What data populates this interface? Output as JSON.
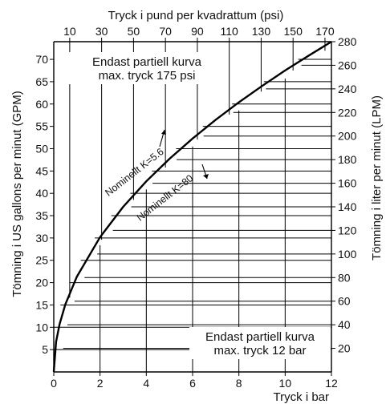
{
  "chart_data": {
    "type": "line",
    "top_axis": {
      "label": "Tryck i pund per kvadrattum (psi)",
      "ticks": [
        10,
        30,
        50,
        70,
        90,
        110,
        130,
        150,
        170
      ],
      "range": [
        0,
        174.05
      ]
    },
    "bottom_axis": {
      "label": "Tryck i bar",
      "ticks": [
        0,
        2,
        4,
        6,
        8,
        10,
        12
      ],
      "range": [
        0,
        12
      ]
    },
    "left_axis": {
      "label": "Tömning i US gallons per minut (GPM)",
      "ticks": [
        5,
        10,
        15,
        20,
        25,
        30,
        35,
        40,
        45,
        50,
        55,
        60,
        65,
        70
      ],
      "range": [
        0,
        73.96
      ]
    },
    "right_axis": {
      "label": "Tömning i liter per minut (LPM)",
      "ticks": [
        20,
        40,
        60,
        80,
        100,
        120,
        140,
        160,
        180,
        200,
        220,
        240,
        260,
        280
      ],
      "range": [
        0,
        280
      ]
    },
    "notes": {
      "top": [
        "Endast partiell kurva",
        "max. tryck 175 psi"
      ],
      "bottom": [
        "Endast partiell kurva",
        "max. tryck 12 bar"
      ]
    },
    "series": [
      {
        "name": "Nominellt K=5.6",
        "arrow": "up",
        "x_bar": [
          0,
          0.1,
          0.25,
          0.5,
          1,
          2,
          3,
          4,
          5,
          6,
          7,
          8,
          9,
          10,
          11,
          12
        ],
        "y_lpm": [
          0,
          25.6,
          40.4,
          57.2,
          80.8,
          114.3,
          140.0,
          161.6,
          180.7,
          197.9,
          213.8,
          228.6,
          242.4,
          255.6,
          268.0,
          280.0
        ]
      }
    ],
    "grid": true,
    "grid_style": "step"
  }
}
